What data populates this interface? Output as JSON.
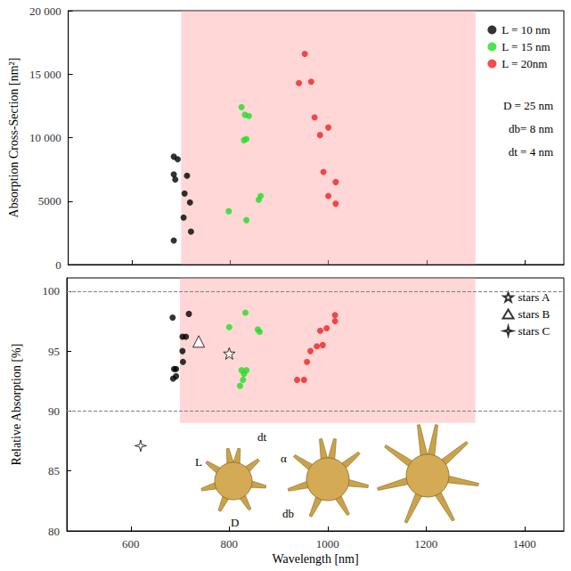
{
  "chart_data": [
    {
      "type": "scatter",
      "y_label": "Absorption Cross-Section [nm²]",
      "xlim": [
        470,
        1480
      ],
      "xticks": [
        600,
        800,
        1000,
        1200,
        1400
      ],
      "ylim": [
        0,
        20000
      ],
      "yticks": [
        0,
        5000,
        {
          "value": 10000,
          "label": "10 000"
        },
        {
          "value": 15000,
          "label": "15 000"
        },
        {
          "value": 20000,
          "label": "20 000"
        }
      ],
      "tick_labels": "y",
      "legend": "upper right",
      "shaded_region": {
        "x": [
          700,
          1300
        ],
        "y": [
          0,
          20000
        ]
      },
      "annotations": [
        "D = 25 nm",
        "db= 8 nm",
        "dt = 4 nm"
      ],
      "series": [
        {
          "name": "L = 10 nm",
          "color": "#000000",
          "marker": "circle",
          "x": [
            685,
            693,
            685,
            688,
            712,
            707,
            718,
            705,
            720,
            685
          ],
          "values": [
            8500,
            8300,
            7100,
            6700,
            7000,
            5600,
            4900,
            3700,
            2600,
            1900
          ]
        },
        {
          "name": "L = 15 nm",
          "color": "#22dd22",
          "marker": "circle",
          "x": [
            823,
            830,
            838,
            833,
            828,
            797,
            858,
            862,
            833
          ],
          "values": [
            12400,
            11800,
            11700,
            9900,
            9800,
            4200,
            5100,
            5400,
            3500
          ]
        },
        {
          "name": "L = 20nm",
          "color": "#ee2222",
          "marker": "circle",
          "x": [
            952,
            940,
            965,
            972,
            983,
            1000,
            990,
            1015,
            1000,
            1015
          ],
          "values": [
            16600,
            14300,
            14400,
            11600,
            10200,
            10800,
            7300,
            6500,
            5400,
            4800
          ]
        }
      ]
    },
    {
      "type": "scatter",
      "x_label": "Wavelength [nm]",
      "y_label": "Relative Absorption [%]",
      "xlim": [
        470,
        1480
      ],
      "xticks": [
        600,
        800,
        1000,
        1200,
        1400
      ],
      "ylim": [
        80,
        101.1
      ],
      "yticks": [
        80,
        85,
        90,
        95,
        100
      ],
      "legend": "upper right",
      "shaded_region": {
        "x": [
          700,
          1300
        ],
        "y": [
          89,
          101.1
        ]
      },
      "reference_lines": [
        90,
        100
      ],
      "illustration_labels": [
        "L",
        "dt",
        "α",
        "D",
        "db"
      ],
      "series": [
        {
          "name": "L = 10 nm",
          "color": "#000000",
          "marker": "circle",
          "x": [
            685,
            718,
            705,
            712,
            688,
            692,
            705,
            706,
            686,
            692
          ],
          "values": [
            97.8,
            98.1,
            96.2,
            96.2,
            93.5,
            93.5,
            95.0,
            94.1,
            92.7,
            92.9
          ]
        },
        {
          "name": "L = 15 nm",
          "color": "#22dd22",
          "marker": "circle",
          "x": [
            800,
            833,
            858,
            862,
            825,
            835,
            830,
            828,
            822
          ],
          "values": [
            97.0,
            98.2,
            96.8,
            96.6,
            93.4,
            93.4,
            93.1,
            92.6,
            92.1
          ]
        },
        {
          "name": "L = 20nm",
          "color": "#ee2222",
          "marker": "circle",
          "x": [
            938,
            952,
            958,
            965,
            978,
            990,
            985,
            998,
            1015,
            1015
          ],
          "values": [
            92.6,
            92.6,
            94.1,
            95.0,
            95.4,
            95.5,
            96.7,
            96.9,
            97.5,
            98.0
          ]
        },
        {
          "name": "stars A",
          "color": "#000000",
          "marker": "open_star",
          "x": [
            800
          ],
          "values": [
            94.8
          ]
        },
        {
          "name": "stars B",
          "color": "#000000",
          "marker": "open_triangle",
          "x": [
            738
          ],
          "values": [
            95.8
          ]
        },
        {
          "name": "stars C",
          "color": "#000000",
          "marker": "open_four_point_star",
          "x": [
            620
          ],
          "values": [
            87.1
          ]
        }
      ]
    }
  ]
}
